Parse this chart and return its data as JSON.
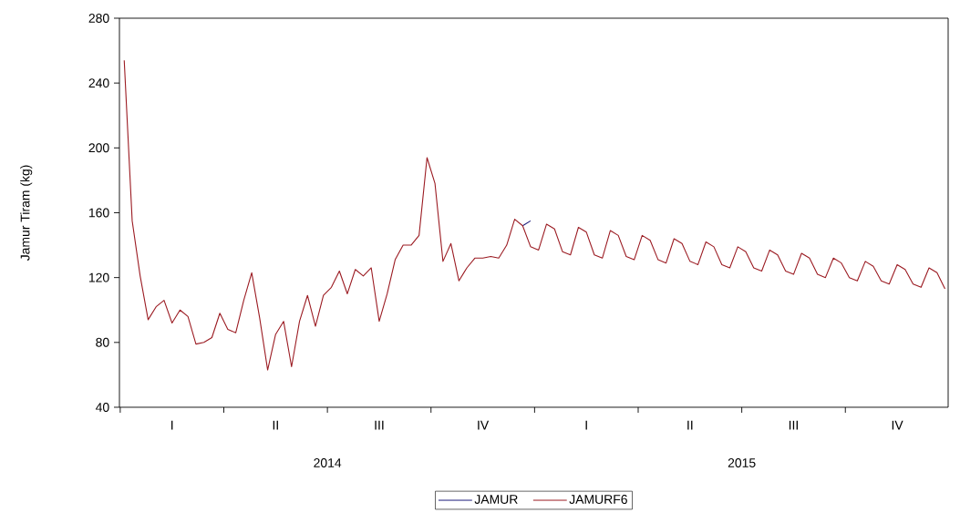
{
  "chart_data": {
    "type": "line",
    "ylabel": "Jamur Tiram (kg)",
    "annotations": [
      "2014",
      "2015"
    ],
    "categories": [
      null,
      null,
      null,
      null,
      null,
      null,
      "I",
      null,
      null,
      null,
      null,
      null,
      null,
      null,
      null,
      null,
      null,
      null,
      null,
      "II",
      null,
      null,
      null,
      null,
      null,
      null,
      null,
      null,
      null,
      null,
      null,
      null,
      "III",
      null,
      null,
      null,
      null,
      null,
      null,
      null,
      null,
      null,
      null,
      null,
      null,
      "IV",
      null,
      null,
      null,
      null,
      null,
      null,
      null,
      null,
      null,
      null,
      null,
      null,
      "I",
      null,
      null,
      null,
      null,
      null,
      null,
      null,
      null,
      null,
      null,
      null,
      null,
      "II",
      null,
      null,
      null,
      null,
      null,
      null,
      null,
      null,
      null,
      null,
      null,
      null,
      "III",
      null,
      null,
      null,
      null,
      null,
      null,
      null,
      null,
      null,
      null,
      null,
      null,
      "IV",
      null,
      null,
      null,
      null,
      null,
      null
    ],
    "series": [
      {
        "name": "JAMUR",
        "color": "#1c1c7a",
        "values": [
          null,
          null,
          null,
          null,
          null,
          null,
          null,
          null,
          null,
          null,
          null,
          null,
          null,
          null,
          null,
          null,
          null,
          null,
          null,
          null,
          null,
          null,
          null,
          null,
          null,
          null,
          null,
          null,
          null,
          null,
          null,
          null,
          null,
          null,
          null,
          null,
          null,
          null,
          null,
          null,
          null,
          null,
          null,
          null,
          null,
          null,
          null,
          null,
          null,
          null,
          152,
          155,
          null,
          null,
          null,
          null,
          null,
          null,
          null,
          null,
          null,
          null,
          null,
          null,
          null,
          null,
          null,
          null,
          null,
          null,
          null,
          null,
          null,
          null,
          null,
          null,
          null,
          null,
          null,
          null,
          null,
          null,
          null,
          null,
          null,
          null,
          null,
          null,
          null,
          null,
          null,
          null,
          null,
          null,
          null,
          null,
          null,
          null,
          null,
          null,
          null,
          null,
          null,
          null
        ]
      },
      {
        "name": "JAMURF6",
        "color": "#9b1b22",
        "values": [
          254,
          155,
          121,
          94,
          102,
          106,
          92,
          100,
          96,
          79,
          80,
          83,
          98,
          88,
          86,
          106,
          123,
          95,
          63,
          85,
          93,
          65,
          93,
          109,
          90,
          109,
          114,
          124,
          110,
          125,
          121,
          126,
          93,
          110,
          131,
          140,
          140,
          146,
          194,
          178,
          130,
          141,
          118,
          126,
          132,
          132,
          133,
          132,
          140,
          156,
          152,
          139,
          137,
          153,
          150,
          136,
          134,
          151,
          148,
          134,
          132,
          149,
          146,
          133,
          131,
          146,
          143,
          131,
          129,
          144,
          141,
          130,
          128,
          142,
          139,
          128,
          126,
          139,
          136,
          126,
          124,
          137,
          134,
          124,
          122,
          135,
          132,
          122,
          120,
          132,
          129,
          120,
          118,
          130,
          127,
          118,
          116,
          128,
          125,
          116,
          114,
          126,
          123,
          113
        ]
      }
    ],
    "ylim": [
      40,
      280
    ],
    "yticks": [
      40,
      80,
      120,
      160,
      200,
      240,
      280
    ],
    "grid": false,
    "legend": "bottom",
    "marker": "none",
    "line_style": "solid"
  }
}
